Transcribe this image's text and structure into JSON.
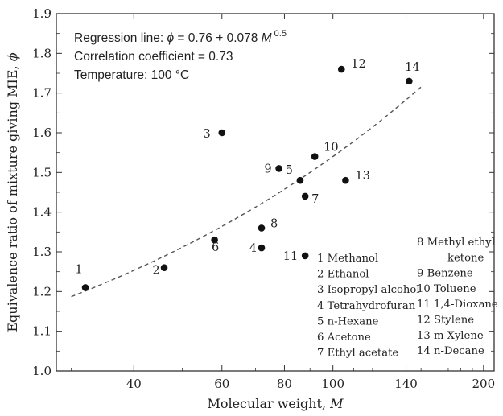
{
  "chart_data": {
    "type": "scatter",
    "x_scale": "log",
    "xlabel": "Molecular weight,",
    "xlabel_var": "M",
    "ylabel": "Equivalence ratio of mixture giving MIE,",
    "ylabel_var": "ϕ",
    "xlim": [
      28,
      210
    ],
    "ylim": [
      1.0,
      1.9
    ],
    "x_ticks": [
      40,
      60,
      80,
      100,
      140,
      200
    ],
    "y_ticks": [
      1.0,
      1.1,
      1.2,
      1.3,
      1.4,
      1.5,
      1.6,
      1.7,
      1.8,
      1.9
    ],
    "y_tick_labels": [
      "1.0",
      "1.1",
      "1.2",
      "1.3",
      "1.4",
      "1.5",
      "1.6",
      "1.7",
      "1.8",
      "1.9"
    ],
    "annotations": {
      "regression_prefix": "Regression line: ",
      "regression_phi": "ϕ",
      "regression_mid": " = 0.76 + 0.078 ",
      "regression_M": "M",
      "regression_exp": " 0.5",
      "correlation": "Correlation coefficient = 0.73",
      "temperature": "Temperature: 100 °C"
    },
    "regression": {
      "intercept": 0.76,
      "coef": 0.078,
      "exponent": 0.5,
      "x_range": [
        30,
        150
      ]
    },
    "points": [
      {
        "id": "1",
        "name": "Methanol",
        "x": 32,
        "y": 1.21
      },
      {
        "id": "2",
        "name": "Ethanol",
        "x": 46,
        "y": 1.26
      },
      {
        "id": "3",
        "name": "Isopropyl alcohol",
        "x": 60,
        "y": 1.6
      },
      {
        "id": "4",
        "name": "Tetrahydrofuran",
        "x": 72,
        "y": 1.31
      },
      {
        "id": "5",
        "name": "n-Hexane",
        "x": 86,
        "y": 1.48
      },
      {
        "id": "6",
        "name": "Acetone",
        "x": 58,
        "y": 1.33
      },
      {
        "id": "7",
        "name": "Ethyl acetate",
        "x": 88,
        "y": 1.44
      },
      {
        "id": "8",
        "name": "Methyl ethyl ketone",
        "x": 72,
        "y": 1.36
      },
      {
        "id": "9",
        "name": "Benzene",
        "x": 78,
        "y": 1.51
      },
      {
        "id": "10",
        "name": "Toluene",
        "x": 92,
        "y": 1.54
      },
      {
        "id": "11",
        "name": "1,4-Dioxane",
        "x": 88,
        "y": 1.29
      },
      {
        "id": "12",
        "name": "Stylene",
        "x": 104,
        "y": 1.76
      },
      {
        "id": "13",
        "name": "m-Xylene",
        "x": 106,
        "y": 1.48
      },
      {
        "id": "14",
        "name": "n-Decane",
        "x": 142,
        "y": 1.73
      }
    ],
    "legend_left": [
      "1 Methanol",
      "2 Ethanol",
      "3 Isopropyl alcohol",
      "4 Tetrahydrofuran",
      "5 n-Hexane",
      "6 Acetone",
      "7 Ethyl acetate"
    ],
    "legend_right": [
      "8 Methyl ethyl",
      "ketone",
      "9 Benzene",
      "10 Toluene",
      "11 1,4-Dioxane",
      "12 Stylene",
      "13  m-Xylene",
      "14 n-Decane"
    ],
    "colors": {
      "axis": "#333333",
      "point": "#111111",
      "regression": "#555555"
    }
  }
}
